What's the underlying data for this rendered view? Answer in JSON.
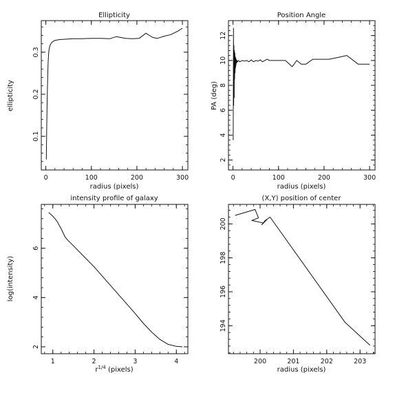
{
  "chart_data": [
    {
      "type": "line",
      "title": "Ellipticity",
      "xlabel": "radius (pixels)",
      "ylabel": "ellipticity",
      "xlim": [
        -10,
        312
      ],
      "ylim": [
        0.02,
        0.375
      ],
      "xticks": [
        0,
        100,
        200,
        300
      ],
      "yticks": [
        0.1,
        0.2,
        0.3
      ],
      "x": [
        1,
        2,
        3,
        4,
        5,
        6,
        7,
        8,
        10,
        12,
        15,
        20,
        30,
        45,
        60,
        80,
        100,
        120,
        140,
        155,
        175,
        190,
        205,
        220,
        235,
        245,
        260,
        275,
        290,
        300
      ],
      "y": [
        0.045,
        0.12,
        0.19,
        0.24,
        0.275,
        0.295,
        0.305,
        0.312,
        0.318,
        0.322,
        0.325,
        0.328,
        0.33,
        0.331,
        0.332,
        0.332,
        0.333,
        0.333,
        0.332,
        0.337,
        0.333,
        0.332,
        0.333,
        0.345,
        0.335,
        0.333,
        0.338,
        0.342,
        0.35,
        0.357
      ]
    },
    {
      "type": "line",
      "title": "Position Angle",
      "xlabel": "radius (pixels)",
      "ylabel": "PA (deg)",
      "xlim": [
        -10,
        312
      ],
      "ylim": [
        1.2,
        13.2
      ],
      "xticks": [
        0,
        100,
        200,
        300
      ],
      "yticks": [
        2,
        4,
        6,
        8,
        10,
        12
      ],
      "x": [
        0.5,
        1,
        1.5,
        2,
        2.5,
        3,
        3.5,
        4,
        4.5,
        5,
        5.5,
        6,
        6.5,
        7,
        8,
        9,
        10,
        12,
        15,
        20,
        25,
        30,
        35,
        40,
        45,
        50,
        55,
        60,
        65,
        70,
        75,
        80,
        90,
        100,
        115,
        130,
        140,
        150,
        160,
        175,
        190,
        210,
        225,
        250,
        275,
        300
      ],
      "y": [
        3.6,
        12.6,
        6.4,
        11.2,
        7.0,
        10.8,
        8.5,
        10.6,
        9.0,
        10.3,
        9.4,
        10.2,
        9.6,
        10.1,
        9.8,
        10.0,
        9.9,
        10.0,
        9.9,
        10.0,
        9.95,
        10.0,
        9.9,
        10.05,
        9.9,
        10.0,
        9.95,
        10.05,
        9.9,
        10.0,
        10.1,
        10.0,
        10.0,
        10.0,
        10.0,
        9.5,
        10.0,
        9.7,
        9.7,
        10.1,
        10.1,
        10.1,
        10.2,
        10.4,
        9.7,
        9.7
      ]
    },
    {
      "type": "line",
      "title": "intensity profile of galaxy",
      "xlabel": "r1/4 (pixels)",
      "xlabel_base": "r",
      "xlabel_sup": "1/4",
      "xlabel_rest": " (pixels)",
      "ylabel": "log(intensity)",
      "xlim": [
        0.72,
        4.28
      ],
      "ylim": [
        1.72,
        7.78
      ],
      "xticks": [
        1,
        2,
        3,
        4
      ],
      "yticks": [
        2,
        4,
        6
      ],
      "x": [
        0.9,
        1.0,
        1.1,
        1.2,
        1.3,
        1.35,
        1.5,
        2.0,
        2.5,
        3.0,
        3.2,
        3.4,
        3.6,
        3.8,
        4.0,
        4.15
      ],
      "y": [
        7.45,
        7.3,
        7.1,
        6.8,
        6.45,
        6.35,
        6.1,
        5.25,
        4.3,
        3.35,
        2.95,
        2.6,
        2.3,
        2.1,
        2.02,
        2.0
      ]
    },
    {
      "type": "line",
      "title": "(X,Y) position of center",
      "xlabel": "radius (pixels)",
      "ylabel": "",
      "xlim": [
        199.05,
        203.45
      ],
      "ylim": [
        192.35,
        201.15
      ],
      "xticks": [
        200,
        201,
        202,
        203
      ],
      "yticks": [
        194,
        196,
        198,
        200
      ],
      "x": [
        199.25,
        199.85,
        199.95,
        199.75,
        200.1,
        200.2,
        200.05,
        200.15,
        200.3,
        202.55,
        203.3
      ],
      "y": [
        200.5,
        200.85,
        200.35,
        200.2,
        200.05,
        200.25,
        199.95,
        200.2,
        200.4,
        194.2,
        192.85
      ]
    }
  ]
}
